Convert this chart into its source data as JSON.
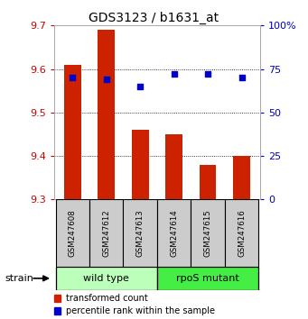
{
  "title": "GDS3123 / b1631_at",
  "samples": [
    "GSM247608",
    "GSM247612",
    "GSM247613",
    "GSM247614",
    "GSM247615",
    "GSM247616"
  ],
  "bar_values": [
    9.61,
    9.69,
    9.46,
    9.45,
    9.38,
    9.4
  ],
  "bar_base": 9.3,
  "scatter_percentile": [
    70,
    69,
    65,
    72,
    72,
    70
  ],
  "ylim": [
    9.3,
    9.7
  ],
  "yticks": [
    9.3,
    9.4,
    9.5,
    9.6,
    9.7
  ],
  "y2lim": [
    0,
    100
  ],
  "y2ticks": [
    0,
    25,
    50,
    75,
    100
  ],
  "y2ticklabels": [
    "0",
    "25",
    "50",
    "75",
    "100%"
  ],
  "bar_color": "#cc2200",
  "scatter_color": "#0000cc",
  "group_labels": [
    "wild type",
    "rpoS mutant"
  ],
  "group_colors": [
    "#bbffbb",
    "#44ee44"
  ],
  "strain_label": "strain",
  "legend_entries": [
    "transformed count",
    "percentile rank within the sample"
  ],
  "left_tick_color": "#cc0000",
  "right_tick_color": "#0000cc",
  "sample_box_color": "#cccccc",
  "grid_style": "dotted"
}
